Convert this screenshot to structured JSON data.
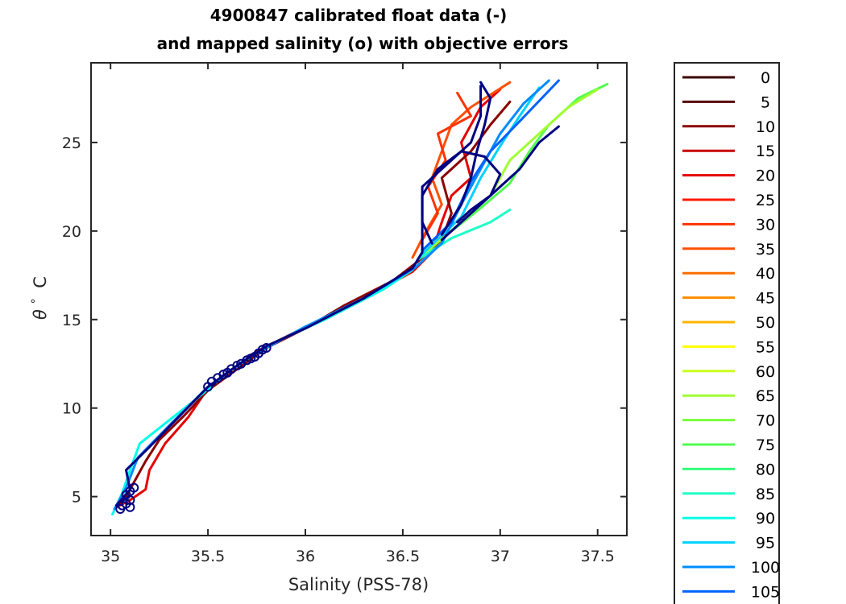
{
  "chart_data": {
    "type": "line",
    "title": "4900847 calibrated float data (-)",
    "subtitle": "and mapped salinity (o) with objective errors",
    "xlabel": "Salinity (PSS-78)",
    "ylabel_symbol": "θ",
    "ylabel_degree": "°",
    "ylabel_unit": "C",
    "xlim": [
      34.9,
      37.65
    ],
    "ylim": [
      2.8,
      29.5
    ],
    "xticks": [
      35,
      35.5,
      36,
      36.5,
      37,
      37.5
    ],
    "xtick_labels": [
      "35",
      "35.5",
      "36",
      "36.5",
      "37",
      "37.5"
    ],
    "yticks": [
      5,
      10,
      15,
      20,
      25
    ],
    "ytick_labels": [
      "5",
      "10",
      "15",
      "20",
      "25"
    ],
    "legend": {
      "placement": "right-outside",
      "entries": [
        {
          "label": "0",
          "color": "#3d0000"
        },
        {
          "label": "5",
          "color": "#5a0000"
        },
        {
          "label": "10",
          "color": "#8b0000"
        },
        {
          "label": "15",
          "color": "#c80000"
        },
        {
          "label": "20",
          "color": "#e60000"
        },
        {
          "label": "25",
          "color": "#ff1a00"
        },
        {
          "label": "30",
          "color": "#ff3300"
        },
        {
          "label": "35",
          "color": "#ff5000"
        },
        {
          "label": "40",
          "color": "#ff6e00"
        },
        {
          "label": "45",
          "color": "#ff8c00"
        },
        {
          "label": "50",
          "color": "#ffb400"
        },
        {
          "label": "55",
          "color": "#ffff00"
        },
        {
          "label": "60",
          "color": "#c8ff1e"
        },
        {
          "label": "65",
          "color": "#a0ff32"
        },
        {
          "label": "70",
          "color": "#78ff3c"
        },
        {
          "label": "75",
          "color": "#50ff50"
        },
        {
          "label": "80",
          "color": "#32ff78"
        },
        {
          "label": "85",
          "color": "#1effc8"
        },
        {
          "label": "90",
          "color": "#00ffe6"
        },
        {
          "label": "95",
          "color": "#00d2ff"
        },
        {
          "label": "100",
          "color": "#008cff"
        },
        {
          "label": "105",
          "color": "#0064ff"
        }
      ]
    },
    "series": [
      {
        "name": "profile-red",
        "color": "#e60000",
        "points": [
          [
            35.03,
            4.4
          ],
          [
            35.1,
            4.8
          ],
          [
            35.18,
            5.4
          ],
          [
            35.2,
            6.5
          ],
          [
            35.28,
            8
          ],
          [
            35.4,
            9.5
          ],
          [
            35.48,
            10.8
          ],
          [
            35.6,
            12
          ],
          [
            35.75,
            13.2
          ],
          [
            35.95,
            14.3
          ],
          [
            36.15,
            15.3
          ],
          [
            36.4,
            16.8
          ],
          [
            36.55,
            17.7
          ],
          [
            36.65,
            18.8
          ],
          [
            36.7,
            20.5
          ],
          [
            36.75,
            22
          ],
          [
            36.85,
            23
          ],
          [
            36.8,
            25
          ],
          [
            36.9,
            27
          ],
          [
            37.0,
            28
          ]
        ]
      },
      {
        "name": "profile-dark-red",
        "color": "#8b0000",
        "points": [
          [
            35.02,
            4.3
          ],
          [
            35.08,
            5.0
          ],
          [
            35.12,
            5.8
          ],
          [
            35.18,
            7.0
          ],
          [
            35.25,
            8.2
          ],
          [
            35.38,
            9.6
          ],
          [
            35.5,
            11.0
          ],
          [
            35.65,
            12.2
          ],
          [
            35.8,
            13.4
          ],
          [
            36.0,
            14.5
          ],
          [
            36.2,
            15.8
          ],
          [
            36.45,
            17.2
          ],
          [
            36.58,
            18.3
          ],
          [
            36.7,
            19.5
          ],
          [
            36.75,
            21
          ],
          [
            36.7,
            23
          ],
          [
            36.85,
            24.5
          ],
          [
            36.95,
            26
          ],
          [
            37.05,
            27.3
          ]
        ]
      },
      {
        "name": "profile-orange",
        "color": "#ff5000",
        "points": [
          [
            36.55,
            18.5
          ],
          [
            36.62,
            20
          ],
          [
            36.7,
            21.5
          ],
          [
            36.65,
            23
          ],
          [
            36.7,
            24.5
          ],
          [
            36.75,
            26
          ],
          [
            36.85,
            27
          ],
          [
            37.05,
            28.4
          ]
        ]
      },
      {
        "name": "profile-orange-2",
        "color": "#ff3300",
        "points": [
          [
            36.6,
            19.5
          ],
          [
            36.68,
            21
          ],
          [
            36.63,
            22.5
          ],
          [
            36.72,
            24
          ],
          [
            36.68,
            25.5
          ],
          [
            36.85,
            26.5
          ],
          [
            36.78,
            27.8
          ]
        ]
      },
      {
        "name": "profile-green",
        "color": "#50ff50",
        "points": [
          [
            36.6,
            18.6
          ],
          [
            36.75,
            20
          ],
          [
            36.9,
            21.3
          ],
          [
            37.05,
            22.7
          ],
          [
            37.15,
            24.5
          ],
          [
            37.25,
            26
          ],
          [
            37.4,
            27.5
          ],
          [
            37.55,
            28.3
          ]
        ]
      },
      {
        "name": "profile-lime",
        "color": "#a0ff32",
        "points": [
          [
            36.62,
            18.8
          ],
          [
            36.8,
            20.5
          ],
          [
            36.95,
            22
          ],
          [
            37.05,
            24
          ],
          [
            37.2,
            25.5
          ],
          [
            37.35,
            27
          ],
          [
            37.5,
            28
          ]
        ]
      },
      {
        "name": "profile-teal",
        "color": "#1effc8",
        "points": [
          [
            36.58,
            18.4
          ],
          [
            36.75,
            19.6
          ],
          [
            36.95,
            20.5
          ],
          [
            37.05,
            21.2
          ]
        ]
      },
      {
        "name": "profile-cyan",
        "color": "#00ffe6",
        "points": [
          [
            35.01,
            4.0
          ],
          [
            35.06,
            5.2
          ],
          [
            35.1,
            6.5
          ],
          [
            35.15,
            8.0
          ],
          [
            35.3,
            9.3
          ],
          [
            35.45,
            10.6
          ],
          [
            35.6,
            12.0
          ],
          [
            35.8,
            13.5
          ],
          [
            36.1,
            15.0
          ],
          [
            36.4,
            16.7
          ],
          [
            36.55,
            17.8
          ]
        ]
      },
      {
        "name": "profile-light-blue",
        "color": "#00d2ff",
        "points": [
          [
            36.6,
            18.7
          ],
          [
            36.8,
            20.8
          ],
          [
            36.9,
            23
          ],
          [
            37.0,
            24.8
          ],
          [
            37.1,
            26.5
          ],
          [
            37.2,
            28.1
          ]
        ]
      },
      {
        "name": "profile-blue",
        "color": "#008cff",
        "points": [
          [
            35.02,
            4.3
          ],
          [
            35.08,
            5.5
          ],
          [
            35.14,
            7.2
          ],
          [
            35.3,
            9.0
          ],
          [
            35.5,
            11.2
          ],
          [
            35.7,
            12.8
          ],
          [
            36.0,
            14.6
          ],
          [
            36.3,
            16.2
          ],
          [
            36.56,
            17.9
          ],
          [
            36.7,
            19.3
          ],
          [
            36.8,
            21.5
          ],
          [
            36.9,
            23.5
          ],
          [
            37.0,
            25.5
          ],
          [
            37.12,
            27.2
          ],
          [
            37.25,
            28.5
          ]
        ]
      },
      {
        "name": "profile-blue-2",
        "color": "#0064ff",
        "points": [
          [
            36.6,
            18.9
          ],
          [
            36.75,
            20.5
          ],
          [
            36.85,
            22.8
          ],
          [
            36.95,
            24.5
          ],
          [
            37.1,
            26.2
          ],
          [
            37.3,
            28.5
          ]
        ]
      },
      {
        "name": "profile-navy",
        "color": "#000080",
        "points": [
          [
            35.03,
            4.5
          ],
          [
            35.1,
            5.4
          ],
          [
            35.08,
            6.5
          ],
          [
            35.2,
            7.8
          ],
          [
            35.35,
            9.5
          ],
          [
            35.5,
            11.2
          ],
          [
            35.65,
            12.4
          ],
          [
            35.8,
            13.5
          ],
          [
            36.0,
            14.5
          ],
          [
            36.3,
            16.2
          ],
          [
            36.55,
            17.9
          ],
          [
            36.6,
            18.8
          ],
          [
            36.6,
            20
          ],
          [
            36.6,
            21
          ],
          [
            36.6,
            22.5
          ],
          [
            36.75,
            24
          ],
          [
            36.85,
            25
          ],
          [
            36.9,
            26.5
          ],
          [
            36.9,
            28.2
          ]
        ]
      },
      {
        "name": "profile-navy-loop",
        "color": "#000080",
        "points": [
          [
            36.65,
            19.3
          ],
          [
            36.6,
            20.5
          ],
          [
            36.6,
            22
          ],
          [
            36.68,
            23.5
          ],
          [
            36.8,
            24.5
          ],
          [
            36.92,
            24.2
          ],
          [
            37.0,
            23.2
          ],
          [
            36.95,
            22
          ],
          [
            36.85,
            21.2
          ],
          [
            36.78,
            20.5
          ]
        ]
      },
      {
        "name": "profile-navy-2",
        "color": "#000080",
        "points": [
          [
            36.7,
            19.8
          ],
          [
            36.8,
            21.5
          ],
          [
            36.85,
            23
          ],
          [
            36.88,
            24.5
          ],
          [
            36.92,
            26
          ],
          [
            36.95,
            27.5
          ],
          [
            36.9,
            28.4
          ]
        ]
      },
      {
        "name": "profile-navy-3",
        "color": "#000080",
        "points": [
          [
            36.7,
            19.5
          ],
          [
            36.9,
            21.5
          ],
          [
            37.1,
            23.5
          ],
          [
            37.2,
            25
          ],
          [
            37.3,
            25.9
          ]
        ]
      }
    ],
    "mapped_markers_color": "#000080",
    "mapped_markers": [
      [
        35.06,
        4.5
      ],
      [
        35.08,
        4.6
      ],
      [
        35.1,
        4.8
      ],
      [
        35.08,
        5.1
      ],
      [
        35.1,
        5.3
      ],
      [
        35.12,
        5.5
      ],
      [
        35.05,
        4.3
      ],
      [
        35.1,
        4.4
      ],
      [
        35.5,
        11.2
      ],
      [
        35.52,
        11.5
      ],
      [
        35.55,
        11.7
      ],
      [
        35.58,
        11.9
      ],
      [
        35.6,
        12.0
      ],
      [
        35.62,
        12.2
      ],
      [
        35.65,
        12.4
      ],
      [
        35.67,
        12.5
      ],
      [
        35.7,
        12.7
      ],
      [
        35.72,
        12.8
      ],
      [
        35.74,
        12.9
      ],
      [
        35.76,
        13.1
      ],
      [
        35.78,
        13.3
      ],
      [
        35.8,
        13.4
      ]
    ]
  }
}
